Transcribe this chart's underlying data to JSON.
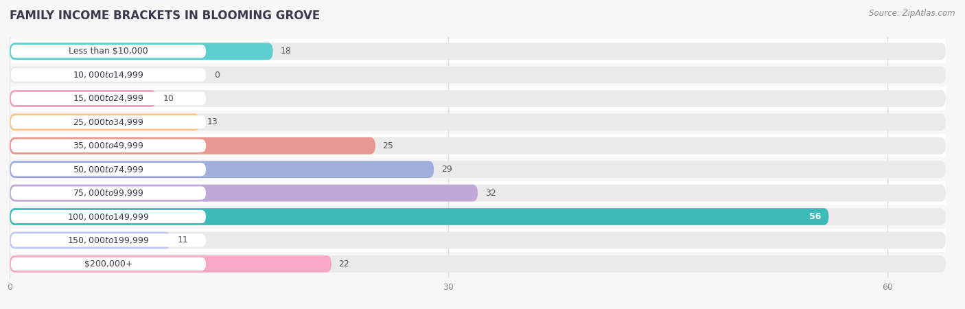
{
  "title": "FAMILY INCOME BRACKETS IN BLOOMING GROVE",
  "source": "Source: ZipAtlas.com",
  "categories": [
    "Less than $10,000",
    "$10,000 to $14,999",
    "$15,000 to $24,999",
    "$25,000 to $34,999",
    "$35,000 to $49,999",
    "$50,000 to $74,999",
    "$75,000 to $99,999",
    "$100,000 to $149,999",
    "$150,000 to $199,999",
    "$200,000+"
  ],
  "values": [
    18,
    0,
    10,
    13,
    25,
    29,
    32,
    56,
    11,
    22
  ],
  "bar_colors": [
    "#5DCFCF",
    "#AAAEE8",
    "#F4A0B8",
    "#F8C888",
    "#E89890",
    "#A0AEDE",
    "#C0A8D8",
    "#3DBABA",
    "#C0C8F4",
    "#F8A8C4"
  ],
  "label_pill_color": "#ffffff",
  "bar_bg_color": "#eaeaea",
  "bar_bg_alpha": 1.0,
  "row_bg_color_odd": "#f7f7f7",
  "row_bg_color_even": "#ffffff",
  "xlim": [
    0,
    64
  ],
  "xticks": [
    0,
    30,
    60
  ],
  "title_color": "#3a3a4a",
  "label_color": "#3a3a4a",
  "value_color_dark": "#555555",
  "value_color_light": "#ffffff",
  "grid_color": "#dddddd",
  "background_color": "#f7f7f7",
  "title_fontsize": 12,
  "source_fontsize": 8.5,
  "label_fontsize": 9,
  "value_fontsize": 9
}
